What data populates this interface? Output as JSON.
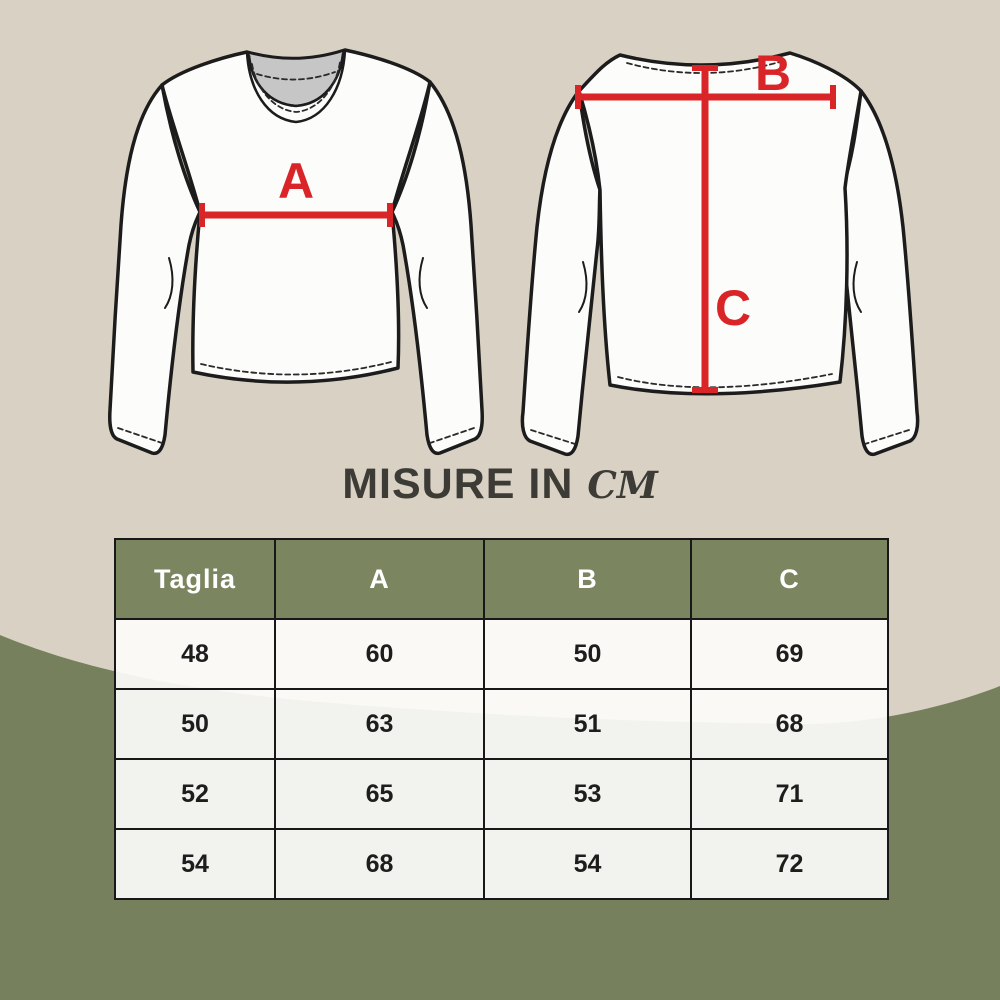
{
  "colors": {
    "background": "#d8d1c4",
    "wave_green": "#76805d",
    "table_header_green": "#7b8660",
    "accent_red": "#d92528",
    "title_text": "#3d3b35",
    "outline": "#1c1c1c",
    "collar_gray": "#c6c6c6"
  },
  "title": {
    "main": "MISURE IN",
    "unit": "CM"
  },
  "measurement_labels": {
    "chest_width": "A",
    "shoulder_width": "B",
    "length": "C"
  },
  "size_table": {
    "headers": [
      "Taglia",
      "A",
      "B",
      "C"
    ],
    "rows": [
      [
        "48",
        "60",
        "50",
        "69"
      ],
      [
        "50",
        "63",
        "51",
        "68"
      ],
      [
        "52",
        "65",
        "53",
        "71"
      ],
      [
        "54",
        "68",
        "54",
        "72"
      ]
    ]
  }
}
